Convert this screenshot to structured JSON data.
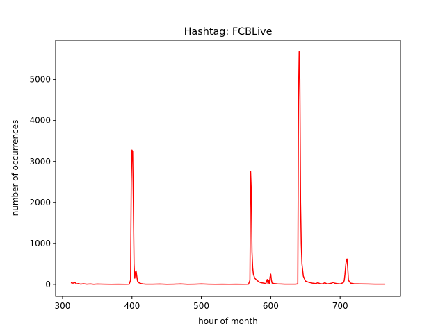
{
  "chart_data": {
    "type": "line",
    "title": "Hashtag: FCBLive",
    "xlabel": "hour of month",
    "ylabel": "number of occurrences",
    "xlim": [
      290,
      787
    ],
    "ylim": [
      -290,
      5960
    ],
    "xticks": [
      300,
      400,
      500,
      600,
      700
    ],
    "yticks": [
      0,
      1000,
      2000,
      3000,
      4000,
      5000
    ],
    "grid": false,
    "series": [
      {
        "color": "#ff0000",
        "x": [
          312,
          315,
          318,
          320,
          323,
          326,
          330,
          335,
          340,
          345,
          350,
          360,
          370,
          380,
          390,
          396,
          398,
          399,
          400,
          401,
          402,
          403,
          404,
          405,
          406,
          407,
          408,
          410,
          413,
          416,
          420,
          430,
          440,
          450,
          460,
          470,
          480,
          490,
          500,
          510,
          520,
          530,
          540,
          550,
          560,
          568,
          570,
          571,
          572,
          573,
          574,
          575,
          577,
          580,
          583,
          586,
          590,
          593,
          595,
          596,
          597,
          598,
          599,
          600,
          601,
          602,
          605,
          610,
          615,
          620,
          625,
          630,
          635,
          639,
          640,
          641,
          642,
          643,
          644,
          645,
          647,
          650,
          655,
          660,
          665,
          668,
          670,
          672,
          675,
          678,
          680,
          682,
          685,
          688,
          690,
          692,
          695,
          700,
          703,
          705,
          706,
          707,
          708,
          709,
          710,
          711,
          712,
          715,
          720,
          730,
          740,
          750,
          760,
          765
        ],
        "values": [
          40,
          30,
          45,
          10,
          20,
          5,
          15,
          5,
          10,
          3,
          8,
          5,
          3,
          5,
          3,
          5,
          100,
          2500,
          3280,
          3250,
          2000,
          500,
          150,
          300,
          330,
          200,
          80,
          40,
          20,
          10,
          5,
          5,
          8,
          3,
          5,
          10,
          3,
          5,
          10,
          5,
          3,
          5,
          3,
          5,
          3,
          5,
          100,
          2760,
          2300,
          800,
          400,
          250,
          150,
          100,
          60,
          40,
          30,
          20,
          120,
          20,
          100,
          10,
          180,
          250,
          100,
          30,
          20,
          10,
          8,
          5,
          5,
          5,
          5,
          10,
          4500,
          5680,
          5000,
          2000,
          1000,
          500,
          200,
          80,
          50,
          30,
          20,
          40,
          25,
          10,
          15,
          40,
          20,
          10,
          20,
          30,
          50,
          30,
          20,
          10,
          30,
          50,
          100,
          250,
          450,
          600,
          620,
          400,
          100,
          30,
          15,
          10,
          8,
          5,
          5,
          5
        ]
      }
    ]
  }
}
